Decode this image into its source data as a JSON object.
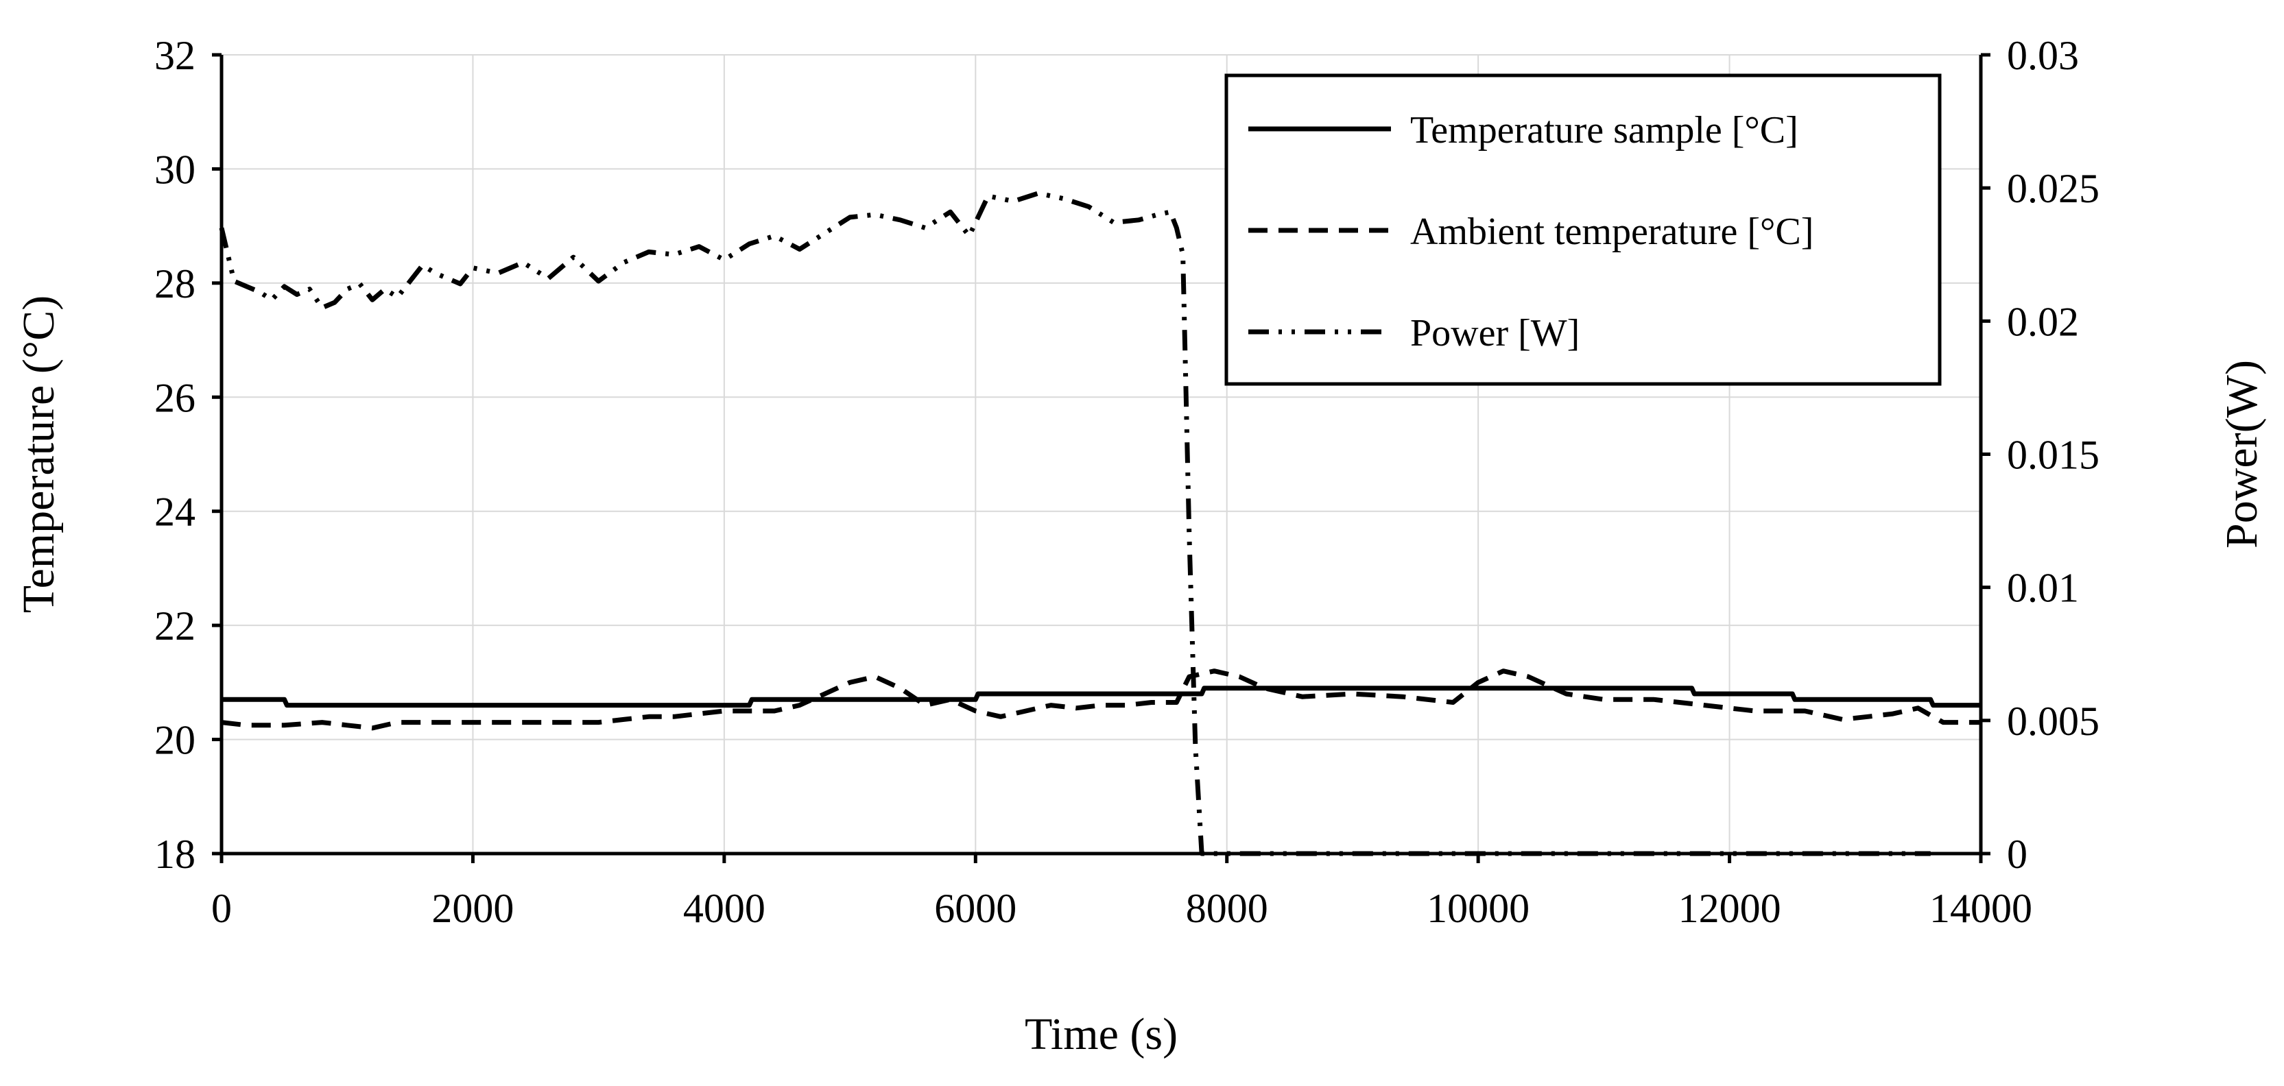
{
  "chart_data": {
    "type": "line",
    "title": "",
    "xlabel": "Time (s)",
    "ylabel_left": "Temperature (°C)",
    "ylabel_right": "Power(W)",
    "xlim": [
      0,
      14000
    ],
    "ylim_left": [
      18,
      32
    ],
    "ylim_right": [
      0,
      0.03
    ],
    "x_ticks": [
      0,
      2000,
      4000,
      6000,
      8000,
      10000,
      12000,
      14000
    ],
    "x_tick_labels": [
      "0",
      "2000",
      "4000",
      "6000",
      "8000",
      "10000",
      "12000",
      "14000"
    ],
    "y_left_ticks": [
      18,
      20,
      22,
      24,
      26,
      28,
      30,
      32
    ],
    "y_left_tick_labels": [
      "18",
      "20",
      "22",
      "24",
      "26",
      "28",
      "30",
      "32"
    ],
    "y_right_ticks": [
      0,
      0.005,
      0.01,
      0.015,
      0.02,
      0.025,
      0.03
    ],
    "y_right_tick_labels": [
      "0",
      "0.005",
      "0.01",
      "0.015",
      "0.02",
      "0.025",
      "0.03"
    ],
    "grid": true,
    "legend_position": "top-right",
    "series": [
      {
        "name": "Temperature sample [°C]",
        "axis": "left",
        "style": "solid",
        "x": [
          0,
          500,
          520,
          4200,
          4220,
          4700,
          4720,
          6000,
          6020,
          7800,
          7820,
          11700,
          11720,
          12500,
          12520,
          13600,
          13620,
          14000
        ],
        "values": [
          20.7,
          20.7,
          20.6,
          20.6,
          20.7,
          20.7,
          20.7,
          20.7,
          20.8,
          20.8,
          20.9,
          20.9,
          20.8,
          20.8,
          20.7,
          20.7,
          20.6,
          20.6
        ]
      },
      {
        "name": "Ambient temperature [°C]",
        "axis": "left",
        "style": "dashed",
        "x": [
          0,
          200,
          500,
          800,
          1000,
          1200,
          1400,
          2000,
          2600,
          3000,
          3200,
          3400,
          3600,
          3800,
          4000,
          4200,
          4400,
          4600,
          4800,
          5000,
          5200,
          5400,
          5600,
          5800,
          6000,
          6200,
          6400,
          6600,
          6800,
          7000,
          7200,
          7400,
          7600,
          7700,
          7900,
          8100,
          8300,
          8600,
          9000,
          9400,
          9800,
          10000,
          10200,
          10400,
          10700,
          11000,
          11400,
          11800,
          12200,
          12600,
          12900,
          13100,
          13300,
          13500,
          13700,
          14000
        ],
        "values": [
          20.3,
          20.25,
          20.25,
          20.3,
          20.25,
          20.2,
          20.3,
          20.3,
          20.3,
          20.3,
          20.35,
          20.4,
          20.4,
          20.45,
          20.5,
          20.5,
          20.5,
          20.6,
          20.8,
          21.0,
          21.1,
          20.9,
          20.6,
          20.7,
          20.5,
          20.4,
          20.5,
          20.6,
          20.55,
          20.6,
          20.6,
          20.65,
          20.65,
          21.1,
          21.2,
          21.1,
          20.9,
          20.75,
          20.8,
          20.75,
          20.65,
          21.0,
          21.2,
          21.1,
          20.8,
          20.7,
          20.7,
          20.6,
          20.5,
          20.5,
          20.35,
          20.4,
          20.45,
          20.55,
          20.3,
          20.3
        ]
      },
      {
        "name": "Power [W]",
        "axis": "right",
        "style": "dashdotdot",
        "x": [
          0,
          100,
          200,
          300,
          400,
          500,
          600,
          700,
          800,
          900,
          1000,
          1100,
          1200,
          1300,
          1400,
          1500,
          1600,
          1700,
          1800,
          1900,
          2000,
          2200,
          2400,
          2600,
          2800,
          3000,
          3200,
          3400,
          3600,
          3800,
          4000,
          4200,
          4400,
          4600,
          4800,
          5000,
          5200,
          5400,
          5600,
          5800,
          5950,
          6100,
          6300,
          6500,
          6700,
          6900,
          7100,
          7300,
          7450,
          7550,
          7600,
          7650,
          7700,
          7750,
          7800,
          8000,
          9000,
          10000,
          11000,
          12000,
          13000,
          13600
        ],
        "values": [
          0.0235,
          0.0215,
          0.0213,
          0.0211,
          0.0208,
          0.0213,
          0.021,
          0.0212,
          0.0205,
          0.0207,
          0.0212,
          0.0214,
          0.0208,
          0.0212,
          0.0209,
          0.0215,
          0.0221,
          0.0218,
          0.0216,
          0.0214,
          0.022,
          0.0218,
          0.0222,
          0.0216,
          0.0224,
          0.0215,
          0.0222,
          0.0226,
          0.0225,
          0.0228,
          0.0223,
          0.0229,
          0.0232,
          0.0227,
          0.0233,
          0.0239,
          0.024,
          0.0238,
          0.0235,
          0.0241,
          0.0232,
          0.0247,
          0.0245,
          0.0248,
          0.0246,
          0.0243,
          0.0237,
          0.0238,
          0.024,
          0.0241,
          0.0235,
          0.0225,
          0.012,
          0.004,
          0.0,
          0.0,
          0.0,
          0.0,
          0.0,
          0.0,
          0.0,
          0.0
        ]
      }
    ]
  }
}
